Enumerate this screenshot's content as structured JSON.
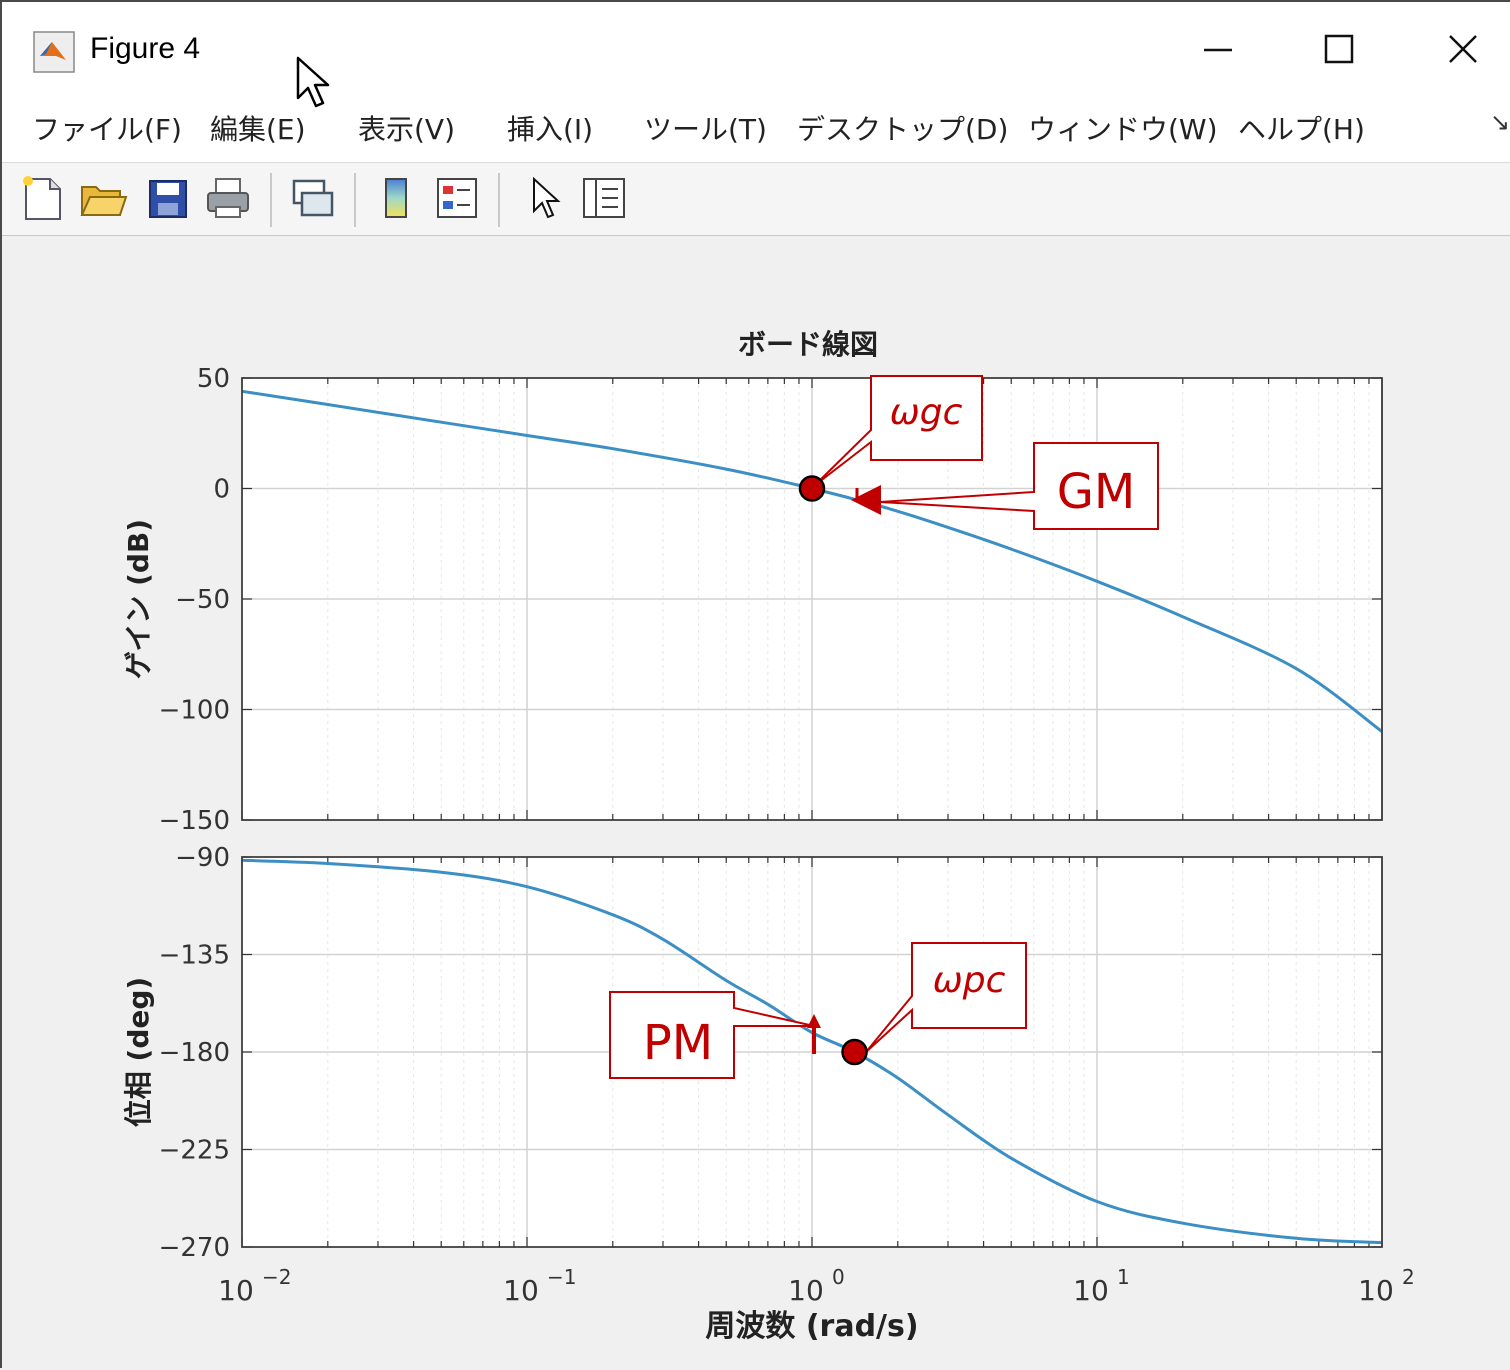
{
  "window": {
    "title": "Figure 4",
    "controls": {
      "minimize": "minimize",
      "maximize": "maximize",
      "close": "close"
    }
  },
  "menu": {
    "items": [
      "ファイル(F)",
      "編集(E)",
      "表示(V)",
      "挿入(I)",
      "ツール(T)",
      "デスクトップ(D)",
      "ウィンドウ(W)",
      "ヘルプ(H)"
    ],
    "overflow": "↘"
  },
  "toolbar": {
    "icons": [
      "new-figure-icon",
      "open-file-icon",
      "save-icon",
      "print-icon",
      "link-icon",
      "colorbar-icon",
      "legend-icon",
      "pointer-icon",
      "property-editor-icon"
    ]
  },
  "colors": {
    "curve": "#3b8fc4",
    "annotation": "#c00000",
    "marker": "#c00000",
    "grid": "#dcdcdc",
    "axes_bg": "#ffffff"
  },
  "chart_data": [
    {
      "type": "line",
      "title": "ボード線図",
      "ylabel": "ゲイン (dB)",
      "xscale": "log",
      "xlim": [
        0.01,
        100
      ],
      "ylim": [
        -150,
        50
      ],
      "yticks": [
        "50",
        "0",
        "-50",
        "-100",
        "-150"
      ],
      "grid": true,
      "series": [
        {
          "x": [
            0.01,
            0.02,
            0.05,
            0.1,
            0.2,
            0.5,
            1,
            1.5,
            2,
            3,
            5,
            10,
            20,
            50,
            100
          ],
          "values": [
            44,
            38,
            30,
            24,
            18,
            8.8,
            0,
            -5.8,
            -10.3,
            -17.6,
            -27.4,
            -42,
            -58,
            -81.5,
            -110
          ]
        }
      ],
      "annotations": [
        {
          "label": "ωgc",
          "x": 1,
          "y": 0
        },
        {
          "label": "GM",
          "x": 1.41,
          "y": -4
        }
      ]
    },
    {
      "type": "line",
      "ylabel": "位相 (deg)",
      "xlabel": "周波数 (rad/s)",
      "xscale": "log",
      "xlim": [
        0.01,
        100
      ],
      "ylim": [
        -270,
        -90
      ],
      "yticks": [
        "-90",
        "-135",
        "-180",
        "-225",
        "-270"
      ],
      "xticks": [
        "10^-2",
        "10^-1",
        "10^0",
        "10^1",
        "10^2"
      ],
      "grid": true,
      "series": [
        {
          "x": [
            0.01,
            0.02,
            0.05,
            0.1,
            0.2,
            0.3,
            0.5,
            0.7,
            1,
            1.41,
            2,
            3,
            5,
            10,
            20,
            50,
            100
          ],
          "values": [
            -91.5,
            -93,
            -97,
            -103.7,
            -116.7,
            -128,
            -147,
            -158,
            -171,
            -180,
            -192,
            -209,
            -229,
            -249,
            -259,
            -266,
            -268
          ]
        }
      ],
      "annotations": [
        {
          "label": "ωpc",
          "x": 1.41,
          "y": -180
        },
        {
          "label": "PM",
          "x": 1,
          "y": -171
        }
      ]
    }
  ],
  "tick_base": "10",
  "tick_exps": [
    "−2",
    "−1",
    "0",
    "1",
    "2"
  ]
}
